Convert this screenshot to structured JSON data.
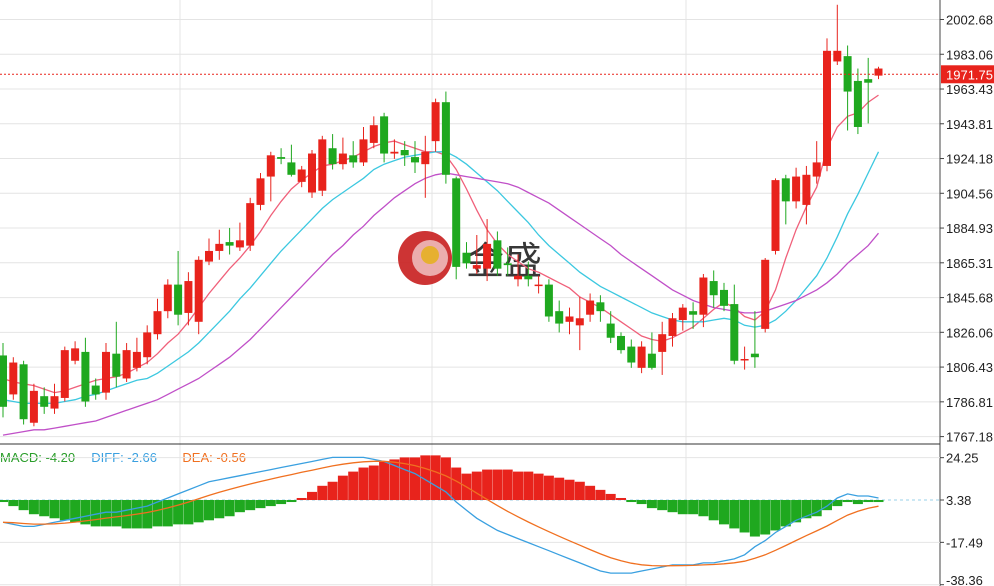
{
  "chart_data": {
    "type": "candlestick",
    "price_axis": {
      "ticks": [
        2002.68,
        1983.06,
        1963.43,
        1943.81,
        1924.18,
        1904.56,
        1884.93,
        1865.31,
        1845.68,
        1826.06,
        1806.43,
        1786.81,
        1767.18
      ],
      "tick_labels": [
        "2002.68",
        "1983.06",
        "1963.43",
        "1943.81",
        "1924.18",
        "1904.56",
        "1884.93",
        "1865.31",
        "1845.68",
        "1826.06",
        "1806.43",
        "1786.81",
        "1767.18"
      ],
      "range": [
        1763.0,
        2012.0
      ]
    },
    "current_price": 1971.75,
    "current_price_label": "1971.75",
    "candles": [
      [
        1813,
        1784,
        1820,
        1778
      ],
      [
        1791,
        1809,
        1812,
        1788
      ],
      [
        1808,
        1777,
        1810,
        1774
      ],
      [
        1775,
        1793,
        1797,
        1773
      ],
      [
        1790,
        1784,
        1795,
        1780
      ],
      [
        1783,
        1790,
        1797,
        1780
      ],
      [
        1789,
        1816,
        1818,
        1787
      ],
      [
        1810,
        1817,
        1821,
        1808
      ],
      [
        1815,
        1787,
        1823,
        1784
      ],
      [
        1796,
        1791,
        1800,
        1788
      ],
      [
        1792,
        1815,
        1820,
        1788
      ],
      [
        1814,
        1801,
        1832,
        1795
      ],
      [
        1800,
        1816,
        1820,
        1798
      ],
      [
        1806,
        1815,
        1823,
        1804
      ],
      [
        1812,
        1826,
        1830,
        1808
      ],
      [
        1825,
        1838,
        1845,
        1822
      ],
      [
        1838,
        1853,
        1856,
        1834
      ],
      [
        1853,
        1836,
        1872,
        1830
      ],
      [
        1837,
        1855,
        1860,
        1830
      ],
      [
        1832,
        1867,
        1869,
        1825
      ],
      [
        1866,
        1872,
        1879,
        1864
      ],
      [
        1872,
        1876,
        1884,
        1867
      ],
      [
        1877,
        1875,
        1885,
        1870
      ],
      [
        1874,
        1878,
        1888,
        1872
      ],
      [
        1875,
        1899,
        1902,
        1872
      ],
      [
        1898,
        1913,
        1916,
        1895
      ],
      [
        1914,
        1926,
        1928,
        1900
      ],
      [
        1925,
        1924,
        1930,
        1921
      ],
      [
        1922,
        1915,
        1932,
        1914
      ],
      [
        1911,
        1918,
        1920,
        1908
      ],
      [
        1905,
        1927,
        1929,
        1902
      ],
      [
        1906,
        1935,
        1937,
        1903
      ],
      [
        1930,
        1921,
        1938,
        1918
      ],
      [
        1921,
        1927,
        1936,
        1918
      ],
      [
        1926,
        1922,
        1934,
        1919
      ],
      [
        1922,
        1935,
        1942,
        1920
      ],
      [
        1933,
        1943,
        1948,
        1930
      ],
      [
        1948,
        1927,
        1950,
        1922
      ],
      [
        1927,
        1928,
        1935,
        1924
      ],
      [
        1929,
        1926,
        1934,
        1920
      ],
      [
        1925,
        1922,
        1934,
        1916
      ],
      [
        1921,
        1928,
        1937,
        1902
      ],
      [
        1934,
        1956,
        1958,
        1928
      ],
      [
        1956,
        1915,
        1962,
        1910
      ],
      [
        1913,
        1863,
        1914,
        1856
      ],
      [
        1871,
        1865,
        1877,
        1862
      ],
      [
        1862,
        1864,
        1881,
        1859
      ],
      [
        1862,
        1876,
        1890,
        1855
      ],
      [
        1878,
        1862,
        1883,
        1858
      ],
      [
        1865,
        1864,
        1874,
        1858
      ],
      [
        1856,
        1858,
        1870,
        1852
      ],
      [
        1858,
        1856,
        1866,
        1852
      ],
      [
        1853,
        1853,
        1858,
        1848
      ],
      [
        1853,
        1835,
        1856,
        1832
      ],
      [
        1838,
        1831,
        1844,
        1826
      ],
      [
        1832,
        1835,
        1840,
        1825
      ],
      [
        1830,
        1834,
        1846,
        1816
      ],
      [
        1836,
        1844,
        1848,
        1832
      ],
      [
        1843,
        1838,
        1847,
        1832
      ],
      [
        1831,
        1823,
        1838,
        1820
      ],
      [
        1824,
        1816,
        1826,
        1814
      ],
      [
        1818,
        1809,
        1822,
        1806
      ],
      [
        1806,
        1818,
        1821,
        1803
      ],
      [
        1814,
        1806,
        1826,
        1805
      ],
      [
        1815,
        1825,
        1832,
        1802
      ],
      [
        1824,
        1834,
        1837,
        1818
      ],
      [
        1833,
        1840,
        1842,
        1827
      ],
      [
        1838,
        1836,
        1843,
        1828
      ],
      [
        1836,
        1857,
        1859,
        1829
      ],
      [
        1855,
        1847,
        1861,
        1840
      ],
      [
        1850,
        1841,
        1854,
        1838
      ],
      [
        1842,
        1810,
        1853,
        1808
      ],
      [
        1811,
        1811,
        1818,
        1805
      ],
      [
        1814,
        1812,
        1838,
        1806
      ],
      [
        1828,
        1867,
        1868,
        1826
      ],
      [
        1872,
        1912,
        1913,
        1870
      ],
      [
        1913,
        1900,
        1915,
        1887
      ],
      [
        1900,
        1914,
        1919,
        1896
      ],
      [
        1898,
        1915,
        1920,
        1887
      ],
      [
        1914,
        1922,
        1934,
        1910
      ],
      [
        1920,
        1985,
        1992,
        1917
      ],
      [
        1979,
        1985,
        2011,
        1977
      ],
      [
        1982,
        1962,
        1988,
        1940
      ],
      [
        1968,
        1942,
        1975,
        1938
      ],
      [
        1969,
        1967,
        1981,
        1944
      ],
      [
        1971,
        1975,
        1976,
        1969
      ]
    ],
    "moving_averages": [
      {
        "color": "#f0607a",
        "values": [
          1800,
          1798,
          1797,
          1796,
          1794,
          1792,
          1793,
          1795,
          1797,
          1799,
          1800,
          1801,
          1803,
          1806,
          1809,
          1814,
          1820,
          1825,
          1832,
          1840,
          1848,
          1855,
          1862,
          1868,
          1875,
          1883,
          1892,
          1900,
          1907,
          1912,
          1916,
          1920,
          1921,
          1923,
          1925,
          1928,
          1931,
          1933,
          1934,
          1932,
          1930,
          1928,
          1928,
          1926,
          1918,
          1907,
          1895,
          1884,
          1876,
          1870,
          1866,
          1862,
          1860,
          1857,
          1854,
          1851,
          1846,
          1843,
          1840,
          1836,
          1832,
          1828,
          1824,
          1822,
          1821,
          1823,
          1826,
          1829,
          1834,
          1839,
          1843,
          1840,
          1835,
          1833,
          1838,
          1850,
          1868,
          1884,
          1897,
          1908,
          1930,
          1942,
          1948,
          1950,
          1956,
          1960
        ]
      },
      {
        "color": "#3cc8e0",
        "values": [
          1788,
          1787,
          1786,
          1786,
          1786,
          1786,
          1787,
          1788,
          1790,
          1791,
          1793,
          1795,
          1797,
          1799,
          1800,
          1803,
          1807,
          1811,
          1815,
          1820,
          1826,
          1832,
          1838,
          1845,
          1851,
          1858,
          1865,
          1872,
          1878,
          1884,
          1890,
          1896,
          1901,
          1905,
          1909,
          1913,
          1918,
          1921,
          1923,
          1925,
          1926,
          1927,
          1928,
          1928,
          1925,
          1921,
          1916,
          1911,
          1906,
          1900,
          1894,
          1888,
          1881,
          1875,
          1870,
          1865,
          1860,
          1856,
          1852,
          1849,
          1846,
          1843,
          1840,
          1837,
          1835,
          1833,
          1832,
          1832,
          1832,
          1833,
          1834,
          1833,
          1830,
          1829,
          1830,
          1833,
          1838,
          1844,
          1851,
          1858,
          1868,
          1880,
          1893,
          1904,
          1916,
          1928
        ]
      },
      {
        "color": "#c050c8",
        "values": [
          1768,
          1769,
          1770,
          1771,
          1771,
          1772,
          1773,
          1774,
          1775,
          1776,
          1778,
          1780,
          1782,
          1784,
          1786,
          1788,
          1791,
          1794,
          1797,
          1800,
          1804,
          1808,
          1812,
          1817,
          1822,
          1828,
          1834,
          1840,
          1846,
          1852,
          1858,
          1864,
          1870,
          1875,
          1881,
          1886,
          1892,
          1897,
          1902,
          1906,
          1910,
          1913,
          1915,
          1916,
          1915,
          1914,
          1913,
          1912,
          1911,
          1910,
          1908,
          1905,
          1902,
          1899,
          1895,
          1891,
          1887,
          1883,
          1879,
          1875,
          1870,
          1866,
          1862,
          1858,
          1854,
          1850,
          1847,
          1844,
          1842,
          1840,
          1839,
          1838,
          1837,
          1837,
          1838,
          1840,
          1842,
          1844,
          1847,
          1850,
          1854,
          1859,
          1865,
          1870,
          1875,
          1882
        ]
      }
    ],
    "macd": {
      "legend": [
        {
          "label": "MACD: -4.20",
          "color": "#2a9d2a"
        },
        {
          "label": "DIFF: -2.66",
          "color": "#3aa0e0"
        },
        {
          "label": "DEA: -0.56",
          "color": "#f07020"
        }
      ],
      "ticks": [
        24.25,
        3.38,
        -17.49,
        -38.36
      ],
      "tick_labels": [
        "24.25",
        "3.38",
        "-17.49",
        "-38.36"
      ],
      "range": [
        -39.0,
        30.0
      ],
      "hist": [
        -1,
        -3,
        -5,
        -7,
        -8,
        -9,
        -10,
        -11,
        -12,
        -13,
        -13,
        -13,
        -14,
        -14,
        -14,
        -13,
        -13,
        -12,
        -12,
        -11,
        -10,
        -9,
        -8,
        -6,
        -5,
        -4,
        -3,
        -2,
        -1,
        1,
        4,
        7,
        9,
        12,
        14,
        16,
        17,
        19,
        20,
        21,
        21,
        22,
        22,
        21,
        16,
        13,
        14,
        15,
        15,
        15,
        14,
        14,
        13,
        12,
        11,
        10,
        9,
        7,
        5,
        3,
        1,
        -1,
        -2,
        -4,
        -5,
        -6,
        -7,
        -7,
        -8,
        -10,
        -12,
        -14,
        -16,
        -18,
        -17,
        -15,
        -13,
        -11,
        -9,
        -8,
        -5,
        -3,
        -1,
        -2,
        -1,
        -1
      ],
      "diff": [
        -11,
        -12,
        -13,
        -13,
        -12,
        -11,
        -10,
        -9,
        -8,
        -7,
        -6,
        -6,
        -5,
        -4,
        -3,
        -1,
        1,
        3,
        5,
        7,
        9,
        10,
        11,
        12,
        13,
        14,
        15,
        16,
        17,
        18,
        19,
        20,
        21,
        21,
        21,
        21,
        20,
        19,
        17,
        15,
        13,
        10,
        7,
        4,
        -1,
        -5,
        -9,
        -12,
        -15,
        -17,
        -19,
        -21,
        -23,
        -25,
        -27,
        -29,
        -31,
        -33,
        -35,
        -36,
        -36,
        -36,
        -35,
        -34,
        -33,
        -32,
        -32,
        -32,
        -31,
        -31,
        -30,
        -29,
        -27,
        -23,
        -20,
        -16,
        -13,
        -10,
        -8,
        -6,
        -3,
        1,
        3,
        2,
        2,
        1
      ]
    },
    "watermark": "金盛"
  }
}
